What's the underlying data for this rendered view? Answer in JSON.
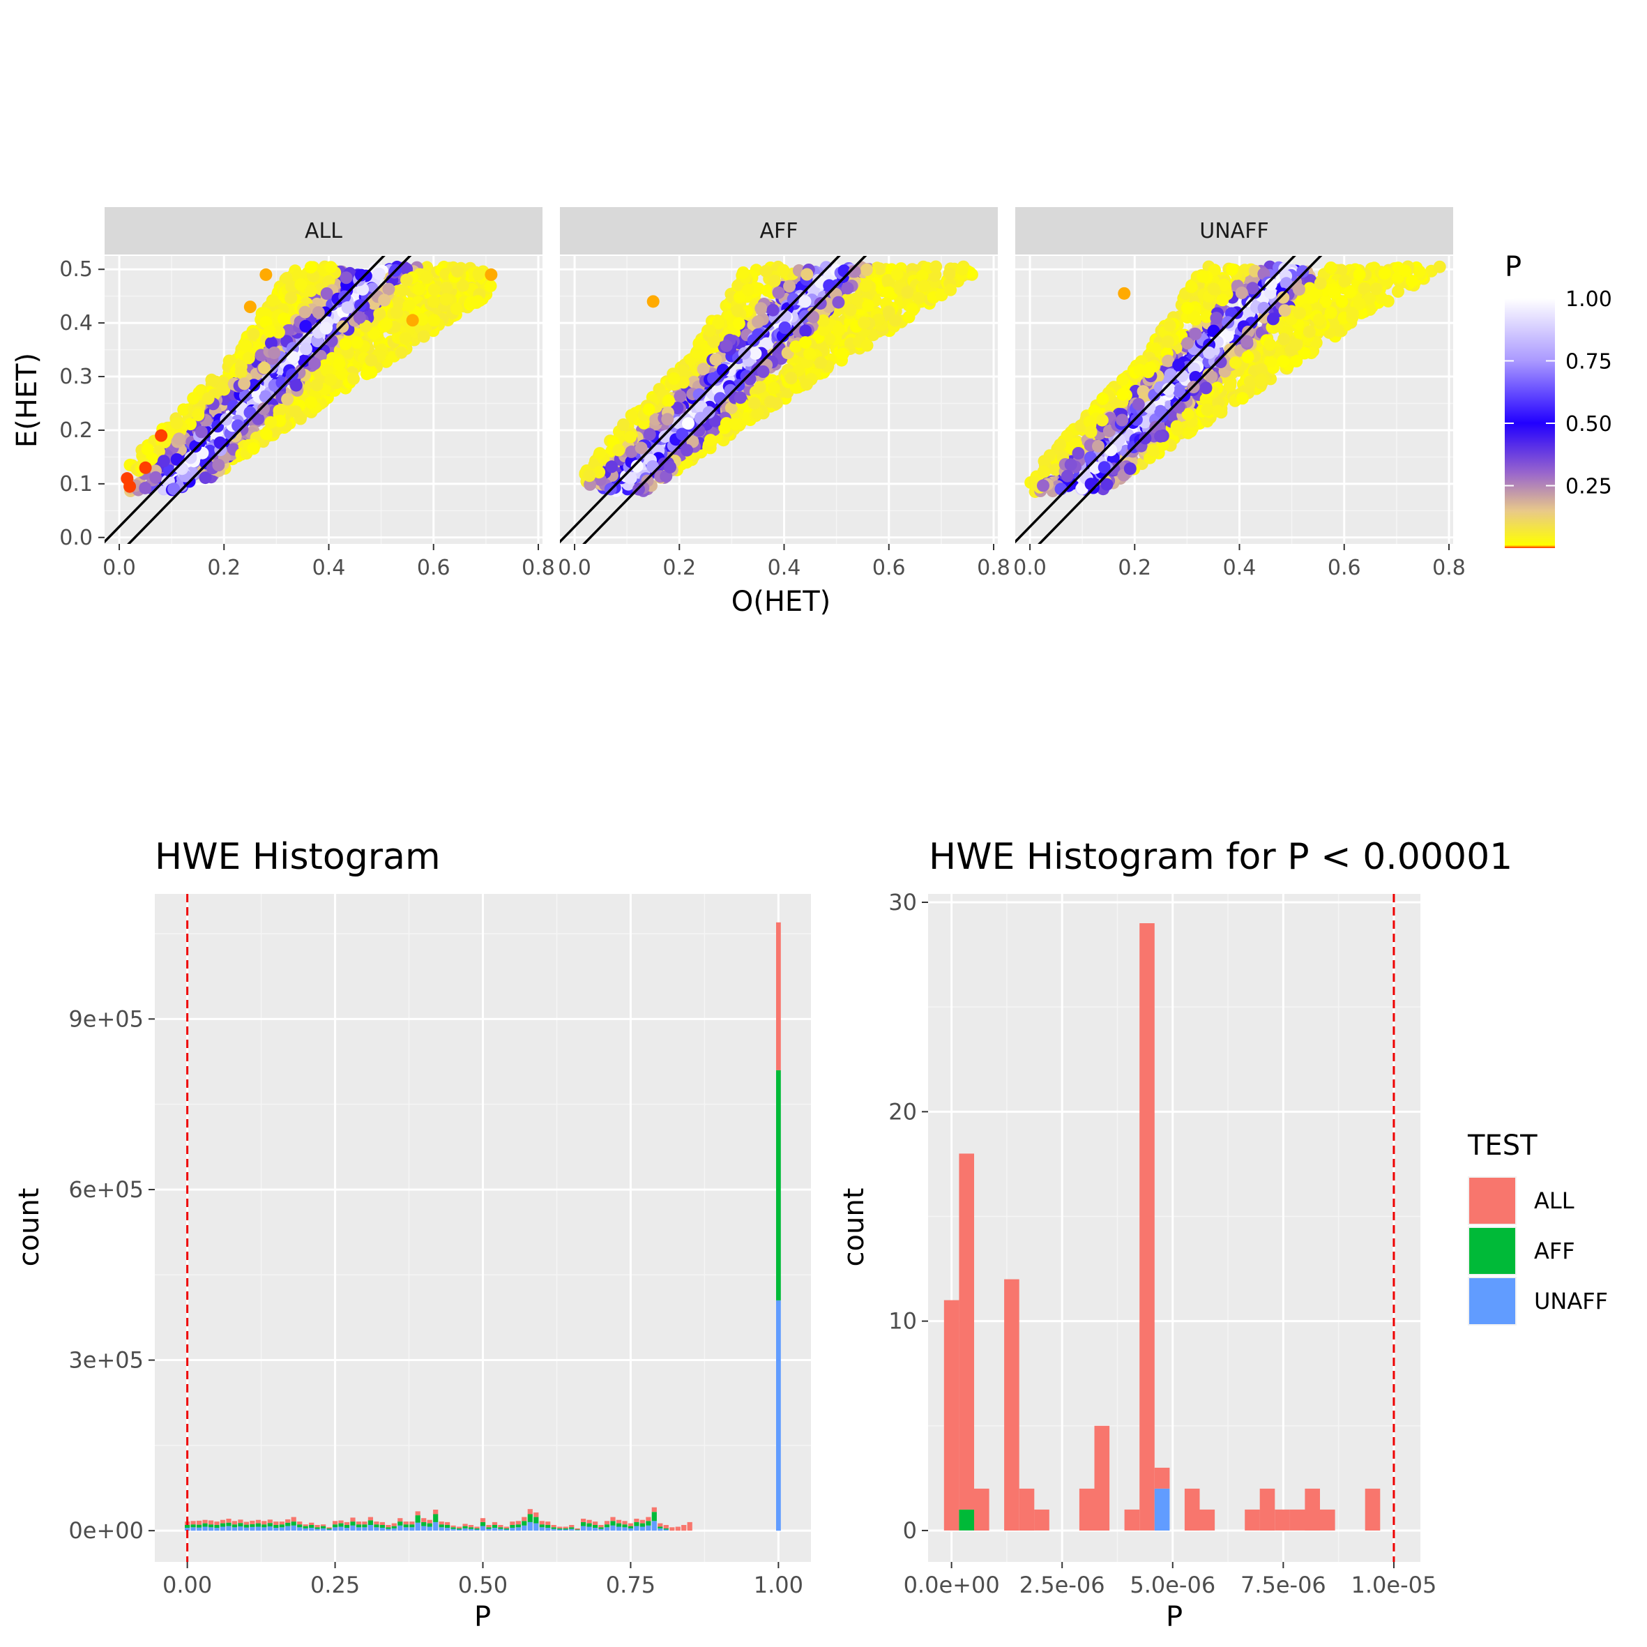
{
  "chart_data": [
    {
      "type": "scatter",
      "facets": [
        "ALL",
        "AFF",
        "UNAFF"
      ],
      "xlabel": "O(HET)",
      "ylabel": "E(HET)",
      "xlim": [
        0,
        0.8
      ],
      "ylim": [
        0,
        0.5
      ],
      "x_ticks": [
        "0.0",
        "0.2",
        "0.4",
        "0.6",
        "0.8"
      ],
      "y_ticks": [
        "0.0",
        "0.1",
        "0.2",
        "0.3",
        "0.4",
        "0.5"
      ],
      "reference_lines": [
        {
          "slope": 1,
          "intercept": 0.02
        },
        {
          "slope": 1,
          "intercept": -0.03
        }
      ],
      "colorbar": {
        "title": "P",
        "ticks": [
          "1.00",
          "0.75",
          "0.50",
          "0.25"
        ],
        "stops": [
          {
            "p": 0.0,
            "color": "#ff2a00"
          },
          {
            "p": 0.01,
            "color": "#ffff00"
          },
          {
            "p": 0.3,
            "color": "#9966cc"
          },
          {
            "p": 0.5,
            "color": "#2200ff"
          },
          {
            "p": 0.75,
            "color": "#aa99ff"
          },
          {
            "p": 1.0,
            "color": "#ffffff"
          }
        ]
      },
      "grid": true,
      "band_description_by_facet": {
        "ALL": {
          "x_range": [
            0.01,
            0.71
          ],
          "p_low_points": [
            [
              0.015,
              0.11
            ],
            [
              0.02,
              0.095
            ],
            [
              0.05,
              0.13
            ],
            [
              0.08,
              0.19
            ],
            [
              0.25,
              0.43
            ],
            [
              0.28,
              0.49
            ],
            [
              0.56,
              0.405
            ],
            [
              0.71,
              0.49
            ]
          ]
        },
        "AFF": {
          "x_range": [
            0.02,
            0.77
          ],
          "p_low_points": [
            [
              0.15,
              0.44
            ]
          ]
        },
        "UNAFF": {
          "x_range": [
            0.0,
            0.79
          ],
          "p_low_points": [
            [
              0.18,
              0.455
            ]
          ]
        }
      }
    },
    {
      "type": "bar",
      "title": "HWE Histogram",
      "xlabel": "P",
      "ylabel": "count",
      "xlim": [
        -0.055,
        1.055
      ],
      "ylim": [
        -55000,
        1120000
      ],
      "x_ticks": [
        "0.00",
        "0.25",
        "0.50",
        "0.75",
        "1.00"
      ],
      "y_ticks": [
        "0e+00",
        "3e+05",
        "6e+05",
        "9e+05"
      ],
      "vline": 0.0,
      "stacked": true,
      "bin_width": 0.01,
      "series": [
        {
          "name": "ALL",
          "color": "#f8766d"
        },
        {
          "name": "AFF",
          "color": "#00ba38"
        },
        {
          "name": "UNAFF",
          "color": "#619cff"
        }
      ],
      "bins_p": [
        0.0,
        0.01,
        0.02,
        0.03,
        0.04,
        0.05,
        0.06,
        0.07,
        0.08,
        0.09,
        0.1,
        0.11,
        0.12,
        0.13,
        0.14,
        0.15,
        0.16,
        0.17,
        0.18,
        0.19,
        0.2,
        0.21,
        0.22,
        0.23,
        0.24,
        0.25,
        0.26,
        0.27,
        0.28,
        0.29,
        0.3,
        0.31,
        0.32,
        0.33,
        0.34,
        0.35,
        0.36,
        0.37,
        0.38,
        0.39,
        0.4,
        0.41,
        0.42,
        0.43,
        0.44,
        0.45,
        0.46,
        0.47,
        0.48,
        0.49,
        0.5,
        0.51,
        0.52,
        0.53,
        0.54,
        0.55,
        0.56,
        0.57,
        0.58,
        0.59,
        0.6,
        0.61,
        0.62,
        0.63,
        0.64,
        0.65,
        0.66,
        0.67,
        0.68,
        0.69,
        0.7,
        0.71,
        0.72,
        0.73,
        0.74,
        0.75,
        0.76,
        0.77,
        0.78,
        0.79,
        0.8,
        0.81,
        0.82,
        0.83,
        0.84,
        0.85,
        1.0
      ],
      "unaff": [
        5000,
        6000,
        5500,
        7000,
        6000,
        5000,
        7000,
        8000,
        6000,
        7500,
        5500,
        6500,
        7000,
        6000,
        7500,
        5000,
        6000,
        8000,
        9000,
        6000,
        4000,
        5000,
        3000,
        4000,
        2000,
        6000,
        7000,
        5000,
        9000,
        6000,
        6000,
        10000,
        6000,
        5000,
        3000,
        4000,
        9000,
        6000,
        6000,
        14000,
        8000,
        7000,
        15000,
        6000,
        5000,
        3000,
        2000,
        4000,
        3000,
        2000,
        8000,
        3000,
        5000,
        3000,
        2000,
        5000,
        6000,
        9000,
        15000,
        13000,
        6000,
        5000,
        3000,
        2000,
        2000,
        3000,
        1000,
        8000,
        7000,
        5000,
        3000,
        6000,
        9000,
        7000,
        6000,
        4000,
        8000,
        7000,
        9000,
        17000,
        4000,
        2000,
        0,
        0,
        0,
        0,
        405000
      ],
      "aff": [
        5000,
        5000,
        5000,
        6000,
        5000,
        5000,
        6000,
        6000,
        5000,
        6000,
        5000,
        5000,
        6000,
        5000,
        6000,
        5000,
        5000,
        6000,
        7000,
        5000,
        4000,
        5000,
        3000,
        4000,
        2000,
        5000,
        6000,
        5000,
        7000,
        5000,
        5000,
        8000,
        5000,
        5000,
        3000,
        4000,
        7000,
        5000,
        5000,
        13000,
        7000,
        6000,
        14000,
        5000,
        5000,
        3000,
        2000,
        4000,
        3000,
        2000,
        7000,
        3000,
        5000,
        3000,
        2000,
        5000,
        5000,
        8000,
        14000,
        11000,
        5000,
        5000,
        3000,
        2000,
        2000,
        3000,
        1000,
        7000,
        6000,
        5000,
        3000,
        5000,
        8000,
        6000,
        5000,
        4000,
        7000,
        6000,
        8000,
        16000,
        3000,
        2000,
        0,
        0,
        0,
        0,
        405000
      ],
      "all": [
        6000,
        6000,
        7000,
        6000,
        7000,
        6000,
        6000,
        7000,
        6000,
        6000,
        5000,
        6000,
        6000,
        6000,
        6000,
        6000,
        5000,
        6000,
        8000,
        5000,
        3000,
        4000,
        4000,
        3000,
        2000,
        6000,
        5000,
        5000,
        7000,
        5000,
        5000,
        6000,
        5000,
        5000,
        4000,
        5000,
        6000,
        5000,
        5000,
        7000,
        7000,
        6000,
        8000,
        5000,
        5000,
        3000,
        3000,
        4000,
        4000,
        3000,
        7000,
        4000,
        5000,
        4000,
        3000,
        6000,
        6000,
        7000,
        9000,
        8000,
        6000,
        6000,
        4000,
        3000,
        3000,
        4000,
        2000,
        6000,
        6000,
        6000,
        4000,
        6000,
        7000,
        6000,
        6000,
        5000,
        6000,
        6000,
        7000,
        8000,
        6000,
        6000,
        6000,
        7000,
        10000,
        15000,
        260000
      ]
    },
    {
      "type": "bar",
      "title": "HWE Histogram for P < 0.00001",
      "xlabel": "P",
      "ylabel": "count",
      "xlim": [
        -5.3e-07,
        1.06e-05
      ],
      "ylim": [
        -1.5,
        30.4
      ],
      "x_ticks": [
        "0.0e+00",
        "2.5e-06",
        "5.0e-06",
        "7.5e-06",
        "1.0e-05"
      ],
      "y_ticks": [
        "0",
        "10",
        "20",
        "30"
      ],
      "vline": 1e-05,
      "stacked": true,
      "bin_width": 3.4e-07,
      "series": [
        {
          "name": "ALL",
          "color": "#f8766d"
        },
        {
          "name": "AFF",
          "color": "#00ba38"
        },
        {
          "name": "UNAFF",
          "color": "#619cff"
        }
      ],
      "bins": [
        {
          "x": 0.0,
          "all": 11,
          "aff": 0,
          "unaff": 0
        },
        {
          "x": 3.4e-07,
          "all": 17,
          "aff": 1,
          "unaff": 0
        },
        {
          "x": 6.8e-07,
          "all": 2,
          "aff": 0,
          "unaff": 0
        },
        {
          "x": 1.36e-06,
          "all": 12,
          "aff": 0,
          "unaff": 0
        },
        {
          "x": 1.7e-06,
          "all": 2,
          "aff": 0,
          "unaff": 0
        },
        {
          "x": 2.04e-06,
          "all": 1,
          "aff": 0,
          "unaff": 0
        },
        {
          "x": 3.06e-06,
          "all": 2,
          "aff": 0,
          "unaff": 0
        },
        {
          "x": 3.4e-06,
          "all": 5,
          "aff": 0,
          "unaff": 0
        },
        {
          "x": 4.08e-06,
          "all": 1,
          "aff": 0,
          "unaff": 0
        },
        {
          "x": 4.42e-06,
          "all": 29,
          "aff": 0,
          "unaff": 0
        },
        {
          "x": 4.76e-06,
          "all": 1,
          "aff": 0,
          "unaff": 2
        },
        {
          "x": 5.44e-06,
          "all": 2,
          "aff": 0,
          "unaff": 0
        },
        {
          "x": 5.78e-06,
          "all": 1,
          "aff": 0,
          "unaff": 0
        },
        {
          "x": 6.8e-06,
          "all": 1,
          "aff": 0,
          "unaff": 0
        },
        {
          "x": 7.14e-06,
          "all": 2,
          "aff": 0,
          "unaff": 0
        },
        {
          "x": 7.48e-06,
          "all": 1,
          "aff": 0,
          "unaff": 0
        },
        {
          "x": 7.82e-06,
          "all": 1,
          "aff": 0,
          "unaff": 0
        },
        {
          "x": 8.16e-06,
          "all": 2,
          "aff": 0,
          "unaff": 0
        },
        {
          "x": 8.5e-06,
          "all": 1,
          "aff": 0,
          "unaff": 0
        },
        {
          "x": 9.52e-06,
          "all": 2,
          "aff": 0,
          "unaff": 0
        }
      ],
      "legend": {
        "title": "TEST",
        "entries": [
          "ALL",
          "AFF",
          "UNAFF"
        ]
      }
    }
  ]
}
